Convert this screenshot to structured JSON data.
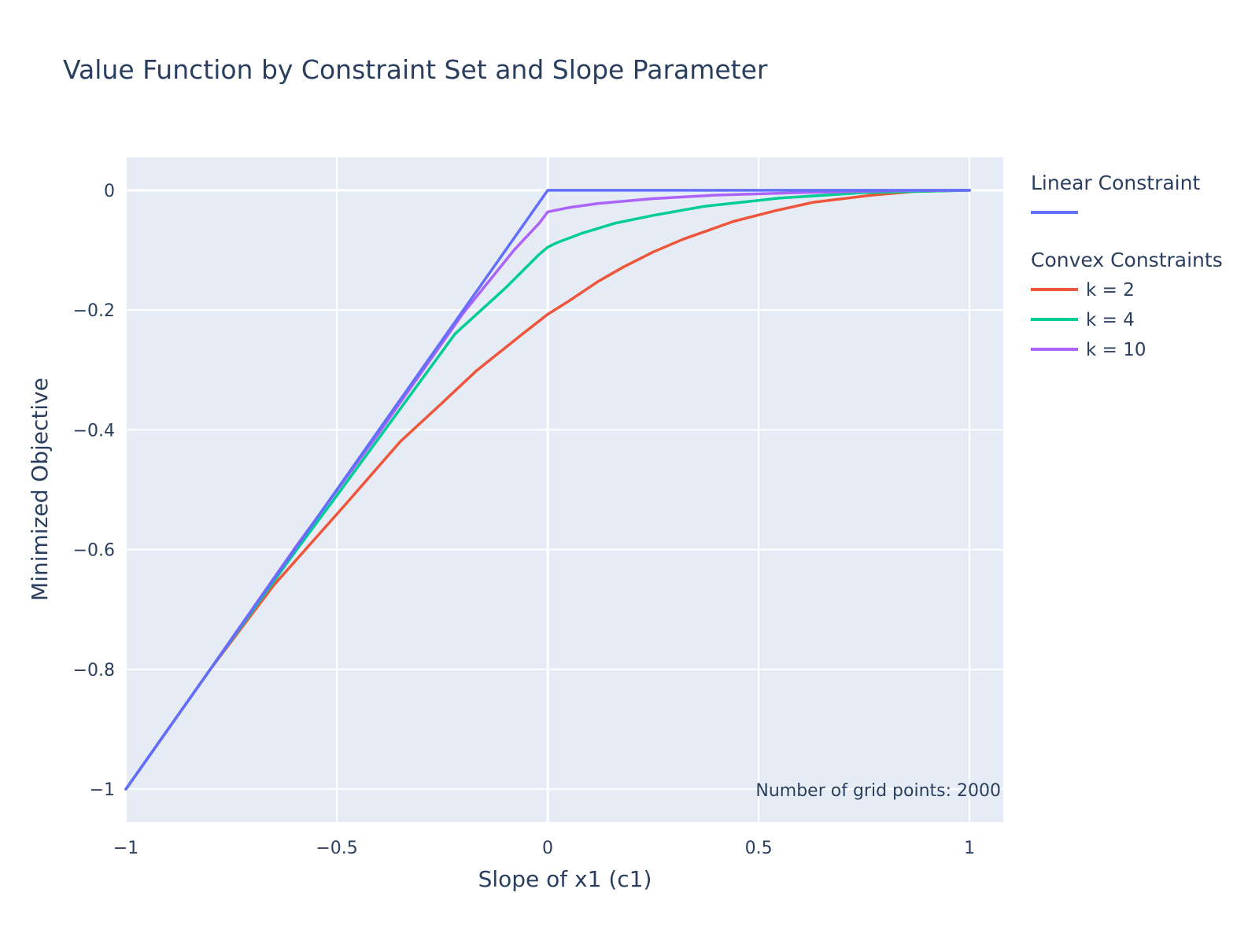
{
  "chart_data": {
    "type": "line",
    "title": "Value Function by Constraint Set and Slope Parameter",
    "xlabel": "Slope of x1 (c1)",
    "ylabel": "Minimized Objective",
    "xlim": [
      -1,
      1.08
    ],
    "ylim": [
      -1.055,
      0.055
    ],
    "grid": true,
    "x_ticks": [
      -1,
      -0.5,
      0,
      0.5,
      1
    ],
    "x_tick_labels": [
      "−1",
      "−0.5",
      "0",
      "0.5",
      "1"
    ],
    "y_ticks": [
      0,
      -0.2,
      -0.4,
      -0.6,
      -0.8,
      -1
    ],
    "y_tick_labels": [
      "0",
      "−0.2",
      "−0.4",
      "−0.6",
      "−0.8",
      "−1"
    ],
    "legend_placement": "right",
    "legend_groups": [
      {
        "title": "Linear Constraint",
        "series": [
          0
        ]
      },
      {
        "title": "Convex Constraints",
        "series": [
          1,
          2,
          3
        ]
      }
    ],
    "annotation": "Number of grid points: 2000",
    "series": [
      {
        "name": "",
        "color": "#636efa",
        "points": [
          [
            -1,
            -1
          ],
          [
            0,
            0
          ],
          [
            1,
            0
          ]
        ]
      },
      {
        "name": "k = 2",
        "color": "#ef553b",
        "points": [
          [
            -1,
            -1
          ],
          [
            -0.8,
            -0.8
          ],
          [
            -0.65,
            -0.66
          ],
          [
            -0.48,
            -0.525
          ],
          [
            -0.35,
            -0.42
          ],
          [
            -0.25,
            -0.355
          ],
          [
            -0.17,
            -0.302
          ],
          [
            -0.06,
            -0.24
          ],
          [
            0,
            -0.207
          ],
          [
            0.05,
            -0.185
          ],
          [
            0.12,
            -0.152
          ],
          [
            0.18,
            -0.128
          ],
          [
            0.25,
            -0.103
          ],
          [
            0.32,
            -0.082
          ],
          [
            0.44,
            -0.052
          ],
          [
            0.54,
            -0.034
          ],
          [
            0.63,
            -0.02
          ],
          [
            0.77,
            -0.008
          ],
          [
            0.87,
            -0.002
          ],
          [
            1,
            0
          ]
        ]
      },
      {
        "name": "k = 4",
        "color": "#00cc96",
        "points": [
          [
            -1,
            -1
          ],
          [
            -0.8,
            -0.8
          ],
          [
            -0.6,
            -0.605
          ],
          [
            -0.5,
            -0.51
          ],
          [
            -0.36,
            -0.375
          ],
          [
            -0.22,
            -0.24
          ],
          [
            -0.1,
            -0.163
          ],
          [
            -0.02,
            -0.107
          ],
          [
            0,
            -0.095
          ],
          [
            0.02,
            -0.088
          ],
          [
            0.08,
            -0.072
          ],
          [
            0.16,
            -0.055
          ],
          [
            0.25,
            -0.042
          ],
          [
            0.37,
            -0.027
          ],
          [
            0.55,
            -0.013
          ],
          [
            0.75,
            -0.004
          ],
          [
            1,
            0
          ]
        ]
      },
      {
        "name": "k = 10",
        "color": "#ab63fa",
        "points": [
          [
            -1,
            -1
          ],
          [
            -0.8,
            -0.8
          ],
          [
            -0.6,
            -0.598
          ],
          [
            -0.4,
            -0.405
          ],
          [
            -0.2,
            -0.205
          ],
          [
            -0.08,
            -0.1
          ],
          [
            -0.02,
            -0.055
          ],
          [
            0,
            -0.036
          ],
          [
            0.05,
            -0.029
          ],
          [
            0.12,
            -0.022
          ],
          [
            0.25,
            -0.014
          ],
          [
            0.4,
            -0.008
          ],
          [
            0.6,
            -0.004
          ],
          [
            0.8,
            -0.001
          ],
          [
            1,
            0
          ]
        ]
      }
    ]
  }
}
